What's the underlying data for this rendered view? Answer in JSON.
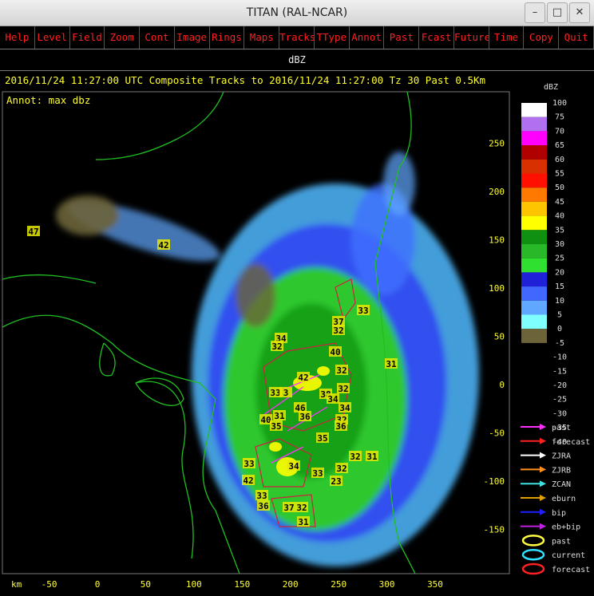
{
  "window": {
    "title": "TITAN (RAL-NCAR)"
  },
  "menu": [
    "Help",
    "Level",
    "Field",
    "Zoom",
    "Cont",
    "Image",
    "Rings",
    "Maps",
    "Tracks",
    "TType",
    "Annot",
    "Past",
    "Fcast",
    "Future",
    "Time",
    "Copy",
    "Quit"
  ],
  "field": "dBZ",
  "status": "2016/11/24 11:27:00 UTC Composite Tracks to 2016/11/24 11:27:00 Tz 30 Past 0.5Km",
  "annot": "Annot: max dbz",
  "map": {
    "x_unit": "km",
    "xticks": [
      -50,
      0,
      50,
      100,
      150,
      200,
      250,
      300,
      350
    ],
    "yticks": [
      250,
      200,
      150,
      100,
      50,
      0,
      -50,
      -100,
      -150
    ],
    "storm_labels": [
      "47",
      "42",
      "33",
      "37",
      "32",
      "34",
      "32",
      "40",
      "31",
      "42",
      "32",
      "33",
      "3",
      "32",
      "38",
      "34",
      "46",
      "34",
      "31",
      "36",
      "40",
      "35",
      "32",
      "36",
      "35",
      "32",
      "31",
      "33",
      "34",
      "33",
      "32",
      "23",
      "42",
      "33",
      "36",
      "37",
      "32",
      "31"
    ]
  },
  "colorbar": {
    "title": "dBZ",
    "labels": [
      100,
      75,
      70,
      65,
      60,
      55,
      50,
      45,
      40,
      35,
      30,
      25,
      20,
      15,
      10,
      5,
      0,
      -5,
      -10,
      -15,
      -20,
      -25,
      -30,
      -35,
      -40
    ],
    "colors": [
      "#ffffff",
      "#b070f0",
      "#ff00ff",
      "#b00000",
      "#d83000",
      "#ff1000",
      "#ff7800",
      "#ffc400",
      "#ffff00",
      "#109010",
      "#28b828",
      "#30e030",
      "#2020d8",
      "#4068ff",
      "#60a8ff",
      "#80ffff",
      "#6c6438"
    ]
  },
  "legend": [
    {
      "label": "past",
      "kind": "arrow",
      "color": "#ff30ff"
    },
    {
      "label": "forecast",
      "kind": "arrow",
      "color": "#ff2020"
    },
    {
      "label": "ZJRA",
      "kind": "arrow",
      "color": "#ffffff"
    },
    {
      "label": "ZJRB",
      "kind": "arrow",
      "color": "#ff9020"
    },
    {
      "label": "ZCAN",
      "kind": "arrow",
      "color": "#40e0e0"
    },
    {
      "label": "eburn",
      "kind": "arrow",
      "color": "#e0a000"
    },
    {
      "label": "bip",
      "kind": "arrow",
      "color": "#2020ff"
    },
    {
      "label": "eb+bip",
      "kind": "arrow",
      "color": "#c020e0"
    },
    {
      "label": "past",
      "kind": "ellipse",
      "color": "#ffff40"
    },
    {
      "label": "current",
      "kind": "ellipse",
      "color": "#30e0ff"
    },
    {
      "label": "forecast",
      "kind": "ellipse",
      "color": "#ff2020"
    }
  ]
}
